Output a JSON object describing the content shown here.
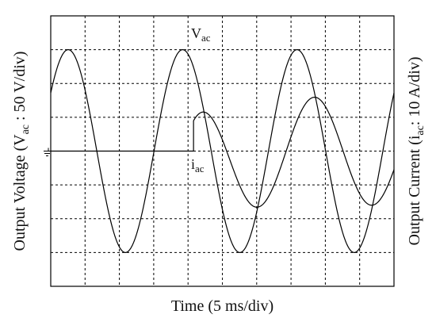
{
  "chart_data": {
    "type": "line",
    "title": "",
    "xlabel": "Time (5 ms/div)",
    "ylabel_left": {
      "prefix": "Output Voltage (V",
      "sub": "ac",
      "suffix": " : 50 V/div)"
    },
    "ylabel_right": {
      "prefix": "Output Current (i",
      "sub": "ac",
      "suffix": ": 10 A/div)"
    },
    "grid": true,
    "grid_style": "dotted",
    "x_divisions": 10,
    "y_divisions": 8,
    "xlim_div": [
      0,
      10
    ],
    "ylim_div": [
      -4,
      4
    ],
    "x_unit": "ms",
    "x_ms_per_div": 5,
    "series": [
      {
        "name": "Vac",
        "label_main": "V",
        "label_sub": "ac",
        "units_per_div": 50,
        "unit": "V",
        "amplitude_div": 3.0,
        "frequency_hz": 60,
        "phase_deg": 35,
        "x_start_ms": 0,
        "x_end_ms": 50
      },
      {
        "name": "iac",
        "label_main": "i",
        "label_sub": "ac",
        "units_per_div": 10,
        "unit": "A",
        "zero_until_ms": 20.8,
        "amplitude_div": 1.6,
        "frequency_hz": 60,
        "phase_deg": -20,
        "offset_div": -0.6,
        "x_start_ms": 0,
        "x_end_ms": 50
      }
    ],
    "ground_marker": "ground-symbol"
  }
}
